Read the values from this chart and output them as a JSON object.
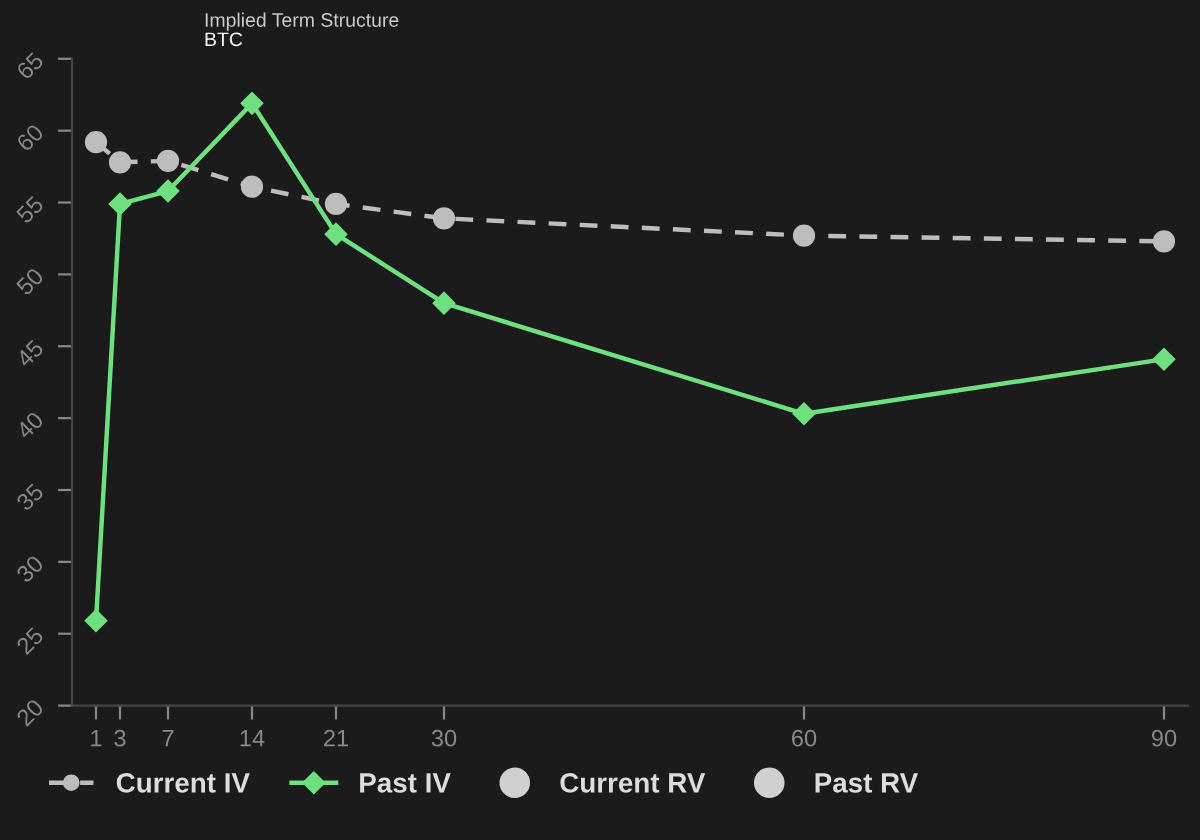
{
  "chart_data": {
    "type": "line",
    "title": "Implied Term Structure",
    "subtitle": "BTC",
    "x": [
      1,
      3,
      7,
      14,
      21,
      30,
      60,
      90
    ],
    "xlim": [
      -1,
      92
    ],
    "xticks": [
      1,
      3,
      7,
      14,
      21,
      30,
      60,
      90
    ],
    "ylim": [
      20,
      65
    ],
    "yticks": [
      20,
      25,
      30,
      35,
      40,
      45,
      50,
      55,
      60,
      65
    ],
    "grid": false,
    "legend": "bottom left",
    "series": [
      {
        "name": "Current IV",
        "color": "#bdbdbd",
        "line_style": "dashed",
        "marker": "circle",
        "values": [
          59.2,
          57.8,
          57.9,
          56.1,
          54.9,
          53.9,
          52.7,
          52.3
        ]
      },
      {
        "name": "Past IV",
        "color": "#6ee07f",
        "line_style": "solid",
        "marker": "diamond",
        "values": [
          25.9,
          54.9,
          55.8,
          61.9,
          52.8,
          48.0,
          40.3,
          44.1
        ]
      },
      {
        "name": "Current RV",
        "color": "#d0d0d0",
        "type": "scatter",
        "marker": "circle",
        "values": [
          null,
          null,
          null,
          null,
          null,
          null,
          null,
          null
        ]
      },
      {
        "name": "Past RV",
        "color": "#d0d0d0",
        "type": "scatter",
        "marker": "circle",
        "values": [
          null,
          null,
          null,
          null,
          null,
          null,
          null,
          null
        ]
      }
    ]
  }
}
